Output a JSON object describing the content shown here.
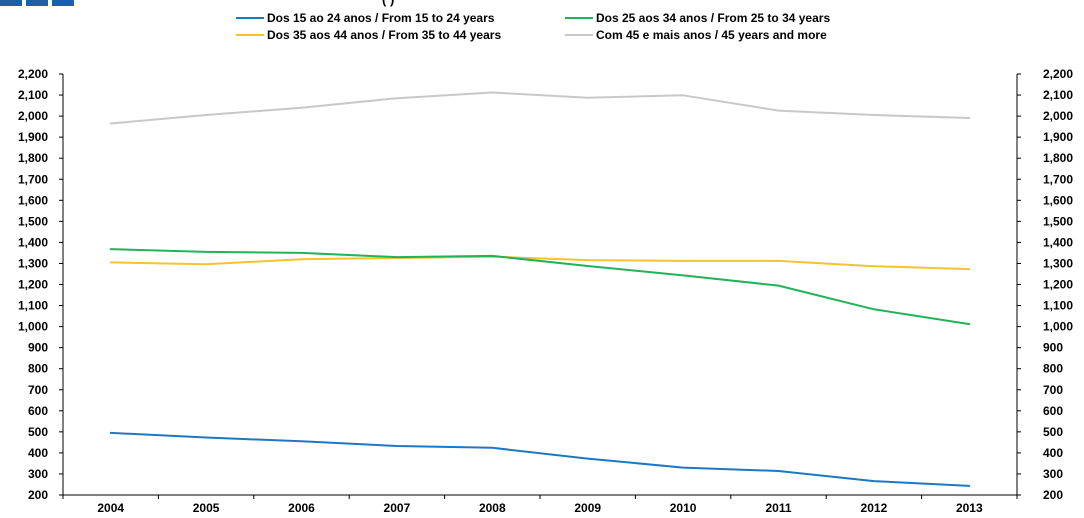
{
  "header": {
    "title_fragment": "(                                                                  )",
    "logo_color": "#1f5fa8"
  },
  "chart_data": {
    "type": "line",
    "categories": [
      "2004",
      "2005",
      "2006",
      "2007",
      "2008",
      "2009",
      "2010",
      "2011",
      "2012",
      "2013"
    ],
    "series": [
      {
        "name": "Dos 15 ao 24 anos / From 15 to 24 years",
        "color": "#1f77c4",
        "values": [
          495,
          473,
          455,
          433,
          424,
          373,
          330,
          314,
          266,
          243
        ]
      },
      {
        "name": "Dos 25 aos 34 anos / From 25 to 34 years",
        "color": "#22b25a",
        "values": [
          1368,
          1355,
          1350,
          1330,
          1336,
          1288,
          1243,
          1195,
          1082,
          1012
        ]
      },
      {
        "name": "Dos 35 aos 44 anos / From 35 to 44 years",
        "color": "#f5c230",
        "values": [
          1305,
          1296,
          1320,
          1326,
          1332,
          1316,
          1312,
          1312,
          1287,
          1273
        ]
      },
      {
        "name": "Com 45 e mais anos / 45 years and more",
        "color": "#c8c8c8",
        "values": [
          1965,
          2005,
          2040,
          2085,
          2112,
          2087,
          2099,
          2026,
          2005,
          1991
        ]
      }
    ],
    "ylim": [
      200,
      2200
    ],
    "ytick_step": 100,
    "yticks_left": [
      "2,200",
      "2,100",
      "2,000",
      "1,900",
      "1,800",
      "1,700",
      "1,600",
      "1,500",
      "1,400",
      "1,300",
      "1,200",
      "1,100",
      "1,000",
      "900",
      "800",
      "700",
      "600",
      "500",
      "400",
      "300",
      "200"
    ],
    "yticks_right": [
      "2,200",
      "2,100",
      "2,000",
      "1,900",
      "1,800",
      "1,700",
      "1,600",
      "1,500",
      "1,400",
      "1,300",
      "1,200",
      "1,100",
      "1,000",
      "900",
      "800",
      "700",
      "600",
      "500",
      "400",
      "300",
      "200"
    ],
    "legend_position": "top",
    "grid": false,
    "dual_axis": true
  }
}
